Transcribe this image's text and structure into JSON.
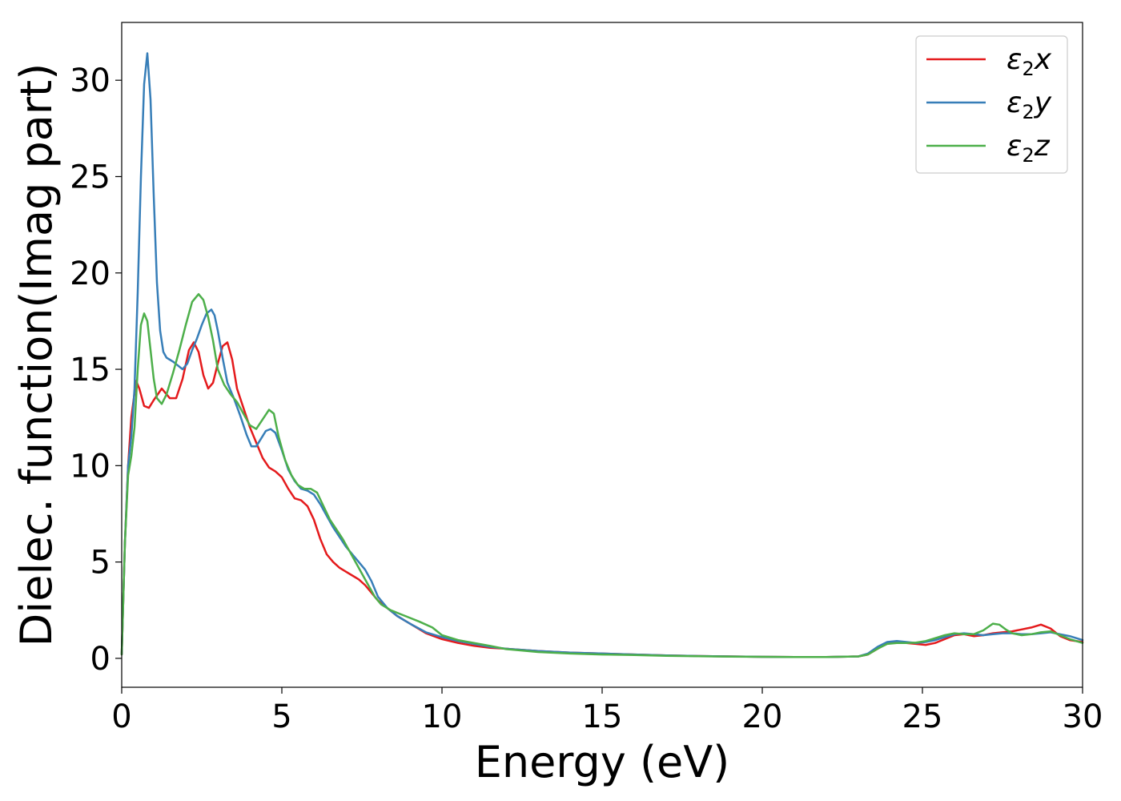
{
  "chart_data": {
    "type": "line",
    "title": "",
    "xlabel": "Energy (eV)",
    "ylabel": "Dielec. function(Imag part)",
    "xlim": [
      0,
      30
    ],
    "ylim": [
      -1.5,
      33
    ],
    "xticks": [
      0,
      5,
      10,
      15,
      20,
      25,
      30
    ],
    "yticks": [
      0,
      5,
      10,
      15,
      20,
      25,
      30
    ],
    "grid": false,
    "legend_position": "top-right",
    "series": [
      {
        "name": "ε₂x",
        "legend_base": "ε",
        "legend_sub": "2",
        "legend_suffix": "x",
        "color": "#e41a1c",
        "x": [
          0,
          0.1,
          0.2,
          0.3,
          0.45,
          0.55,
          0.7,
          0.85,
          1.0,
          1.25,
          1.5,
          1.7,
          1.9,
          2.1,
          2.25,
          2.4,
          2.55,
          2.7,
          2.85,
          3.0,
          3.15,
          3.3,
          3.45,
          3.6,
          3.8,
          4.0,
          4.2,
          4.4,
          4.6,
          4.8,
          5.0,
          5.2,
          5.4,
          5.6,
          5.8,
          6.0,
          6.2,
          6.4,
          6.6,
          6.8,
          7.0,
          7.2,
          7.4,
          7.6,
          7.8,
          8.0,
          8.3,
          8.6,
          9.0,
          9.5,
          10.0,
          10.5,
          11.0,
          11.5,
          12.0,
          13.0,
          14.0,
          15.0,
          16.0,
          17.0,
          18.0,
          19.0,
          20.0,
          21.0,
          22.0,
          23.0,
          23.3,
          23.6,
          23.9,
          24.2,
          24.5,
          24.8,
          25.1,
          25.4,
          25.7,
          26.0,
          26.3,
          26.6,
          26.9,
          27.2,
          27.5,
          27.8,
          28.1,
          28.4,
          28.7,
          29.0,
          29.3,
          29.6,
          30.0
        ],
        "y": [
          0.2,
          6.0,
          10.0,
          12.5,
          14.4,
          14.0,
          13.1,
          13.0,
          13.4,
          14.0,
          13.5,
          13.5,
          14.5,
          16.0,
          16.4,
          15.9,
          14.7,
          14.0,
          14.3,
          15.3,
          16.2,
          16.4,
          15.5,
          14.0,
          13.0,
          12.0,
          11.2,
          10.4,
          9.9,
          9.7,
          9.4,
          8.8,
          8.3,
          8.2,
          7.9,
          7.2,
          6.2,
          5.4,
          5.0,
          4.7,
          4.5,
          4.3,
          4.1,
          3.8,
          3.4,
          3.0,
          2.6,
          2.2,
          1.8,
          1.3,
          1.0,
          0.8,
          0.65,
          0.55,
          0.5,
          0.38,
          0.3,
          0.25,
          0.2,
          0.15,
          0.12,
          0.1,
          0.08,
          0.07,
          0.07,
          0.1,
          0.2,
          0.5,
          0.8,
          0.85,
          0.8,
          0.75,
          0.7,
          0.8,
          1.0,
          1.2,
          1.25,
          1.15,
          1.2,
          1.3,
          1.35,
          1.4,
          1.5,
          1.6,
          1.75,
          1.55,
          1.15,
          0.95,
          0.85
        ]
      },
      {
        "name": "ε₂y",
        "legend_base": "ε",
        "legend_sub": "2",
        "legend_suffix": "y",
        "color": "#377eb8",
        "x": [
          0,
          0.1,
          0.2,
          0.3,
          0.4,
          0.5,
          0.6,
          0.7,
          0.8,
          0.9,
          1.0,
          1.1,
          1.2,
          1.3,
          1.4,
          1.5,
          1.6,
          1.75,
          1.9,
          2.05,
          2.2,
          2.35,
          2.5,
          2.65,
          2.8,
          2.9,
          3.0,
          3.15,
          3.3,
          3.5,
          3.7,
          3.9,
          4.05,
          4.2,
          4.35,
          4.5,
          4.65,
          4.8,
          5.0,
          5.2,
          5.4,
          5.6,
          5.8,
          6.0,
          6.2,
          6.4,
          6.6,
          6.8,
          7.0,
          7.2,
          7.4,
          7.6,
          7.8,
          8.0,
          8.3,
          8.6,
          9.0,
          9.5,
          10.0,
          10.5,
          11.0,
          11.5,
          12.0,
          13.0,
          14.0,
          15.0,
          16.0,
          17.0,
          18.0,
          19.0,
          20.0,
          21.0,
          22.0,
          23.0,
          23.3,
          23.6,
          23.9,
          24.2,
          24.5,
          24.8,
          25.1,
          25.4,
          25.7,
          26.0,
          26.3,
          26.6,
          26.9,
          27.2,
          27.5,
          27.8,
          28.1,
          28.4,
          28.7,
          29.0,
          29.3,
          29.6,
          30.0
        ],
        "y": [
          0.2,
          6.0,
          10.0,
          11.5,
          14.0,
          19.0,
          25.0,
          29.8,
          31.4,
          29.0,
          24.0,
          19.5,
          17.0,
          15.9,
          15.6,
          15.5,
          15.4,
          15.2,
          15.0,
          15.3,
          16.0,
          16.6,
          17.3,
          17.9,
          18.1,
          17.8,
          17.0,
          15.6,
          14.3,
          13.5,
          12.6,
          11.6,
          11.0,
          11.0,
          11.4,
          11.8,
          11.9,
          11.7,
          10.8,
          9.8,
          9.2,
          8.8,
          8.7,
          8.5,
          8.0,
          7.4,
          6.8,
          6.3,
          5.8,
          5.4,
          5.0,
          4.6,
          4.0,
          3.2,
          2.6,
          2.2,
          1.8,
          1.35,
          1.1,
          0.9,
          0.75,
          0.6,
          0.5,
          0.38,
          0.3,
          0.25,
          0.2,
          0.15,
          0.12,
          0.1,
          0.08,
          0.07,
          0.07,
          0.1,
          0.25,
          0.6,
          0.85,
          0.9,
          0.85,
          0.8,
          0.85,
          0.95,
          1.1,
          1.25,
          1.3,
          1.25,
          1.2,
          1.25,
          1.3,
          1.3,
          1.25,
          1.25,
          1.3,
          1.35,
          1.25,
          1.15,
          0.95
        ]
      },
      {
        "name": "ε₂z",
        "legend_base": "ε",
        "legend_sub": "2",
        "legend_suffix": "z",
        "color": "#4daf4a",
        "x": [
          0,
          0.1,
          0.2,
          0.3,
          0.4,
          0.5,
          0.6,
          0.7,
          0.8,
          0.9,
          1.0,
          1.1,
          1.25,
          1.4,
          1.6,
          1.8,
          2.0,
          2.2,
          2.4,
          2.55,
          2.7,
          2.85,
          3.0,
          3.2,
          3.4,
          3.6,
          3.8,
          4.0,
          4.2,
          4.4,
          4.6,
          4.75,
          4.9,
          5.1,
          5.3,
          5.5,
          5.7,
          5.9,
          6.1,
          6.3,
          6.5,
          6.7,
          6.9,
          7.1,
          7.3,
          7.5,
          7.7,
          7.9,
          8.1,
          8.4,
          8.7,
          9.0,
          9.3,
          9.7,
          10.0,
          10.5,
          11.0,
          11.5,
          12.0,
          13.0,
          14.0,
          15.0,
          16.0,
          17.0,
          18.0,
          19.0,
          20.0,
          21.0,
          22.0,
          23.0,
          23.3,
          23.6,
          23.9,
          24.2,
          24.5,
          24.8,
          25.1,
          25.4,
          25.7,
          26.0,
          26.3,
          26.6,
          26.9,
          27.2,
          27.4,
          27.6,
          27.8,
          28.1,
          28.4,
          28.7,
          29.0,
          29.3,
          29.6,
          30.0
        ],
        "y": [
          0.2,
          6.0,
          9.5,
          10.5,
          12.0,
          15.0,
          17.3,
          17.9,
          17.5,
          16.0,
          14.5,
          13.5,
          13.2,
          13.7,
          14.8,
          16.0,
          17.3,
          18.5,
          18.9,
          18.6,
          17.7,
          16.5,
          15.0,
          14.2,
          13.7,
          13.3,
          12.7,
          12.1,
          11.9,
          12.4,
          12.9,
          12.7,
          11.5,
          10.3,
          9.5,
          9.0,
          8.8,
          8.8,
          8.6,
          7.9,
          7.2,
          6.7,
          6.2,
          5.6,
          5.0,
          4.4,
          3.8,
          3.2,
          2.8,
          2.5,
          2.3,
          2.1,
          1.9,
          1.6,
          1.2,
          0.95,
          0.8,
          0.65,
          0.48,
          0.33,
          0.25,
          0.2,
          0.17,
          0.13,
          0.11,
          0.09,
          0.08,
          0.07,
          0.07,
          0.1,
          0.2,
          0.5,
          0.75,
          0.8,
          0.8,
          0.82,
          0.9,
          1.05,
          1.2,
          1.3,
          1.25,
          1.25,
          1.45,
          1.8,
          1.75,
          1.5,
          1.3,
          1.2,
          1.25,
          1.35,
          1.4,
          1.2,
          1.0,
          0.8
        ]
      }
    ]
  }
}
